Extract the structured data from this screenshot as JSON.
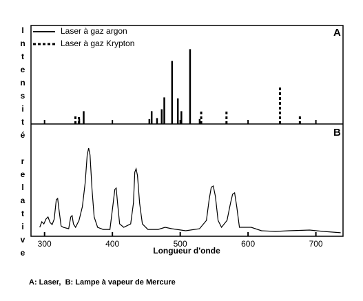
{
  "ylabel": "Intensité relative",
  "caption": "A: Laser,  B: Lampe à vapeur de Mercure",
  "chart_data": [
    {
      "type": "bar",
      "label": "A",
      "xlim": [
        280,
        740
      ],
      "ylim": [
        0,
        100
      ],
      "xticks": [
        300,
        400,
        500,
        600,
        700
      ],
      "series": [
        {
          "name": "Laser à gaz argon",
          "color": "#000000",
          "dashed": false,
          "x": [
            351.1,
            357.7,
            454.5,
            457.9,
            465.8,
            472.7,
            476.5,
            488.0,
            496.5,
            501.7,
            514.5,
            528.7
          ],
          "values": [
            5,
            13,
            5,
            13,
            6,
            15,
            27,
            64,
            26,
            13,
            76,
            5
          ]
        },
        {
          "name": "Laser à gaz Krypton",
          "color": "#000000",
          "dashed": true,
          "x": [
            345.5,
            350.7,
            530.9,
            568.2,
            647.1,
            676.4
          ],
          "values": [
            9,
            7,
            13,
            13,
            37,
            9
          ]
        }
      ]
    },
    {
      "type": "line",
      "label": "B",
      "xlabel": "Longueur d'onde",
      "xlim": [
        280,
        740
      ],
      "ylim": [
        0,
        100
      ],
      "xticks": [
        300,
        400,
        500,
        600,
        700
      ],
      "color": "#000000",
      "x": [
        292.9,
        295.9,
        299,
        302,
        305.1,
        308.1,
        311.2,
        314.2,
        317.3,
        319.3,
        321.3,
        324.4,
        327.4,
        335.5,
        338.6,
        340.6,
        342.6,
        345.7,
        350.8,
        355.8,
        359.9,
        362.9,
        365,
        367,
        370,
        373.1,
        378.2,
        386.3,
        396.4,
        400.5,
        403.6,
        405.6,
        407.6,
        410.7,
        416.7,
        426.9,
        431,
        433,
        435,
        437,
        440.1,
        444.2,
        452.3,
        467.5,
        477.7,
        487.8,
        508.1,
        528.4,
        538.6,
        542.6,
        545.7,
        548.7,
        551.8,
        555.8,
        560.9,
        569,
        574.1,
        577.2,
        580.2,
        583.3,
        587.3,
        594.4,
        604.6,
        619.8,
        640.1,
        660.4,
        690.9,
        711.2,
        736.5
      ],
      "values": [
        8,
        12.9,
        11,
        15.3,
        17.2,
        12.3,
        10.4,
        15.3,
        32.5,
        33.7,
        23.3,
        9.2,
        8,
        6.7,
        17.2,
        18.4,
        11,
        8,
        14.1,
        26.4,
        47.9,
        72.4,
        78.5,
        72.4,
        41.7,
        17.2,
        8,
        6.1,
        6.1,
        26.4,
        41.7,
        42.9,
        29.4,
        11,
        8,
        11,
        29.4,
        57.1,
        60.1,
        54,
        29.4,
        11,
        6.1,
        6.1,
        8,
        6.7,
        4.9,
        6.7,
        14.1,
        32.5,
        43.6,
        44.8,
        35.6,
        14.1,
        8,
        14.1,
        29.4,
        37.4,
        38.7,
        26.4,
        8,
        8,
        8,
        4.9,
        4.3,
        4.9,
        5.5,
        4.3,
        3.1
      ]
    }
  ]
}
